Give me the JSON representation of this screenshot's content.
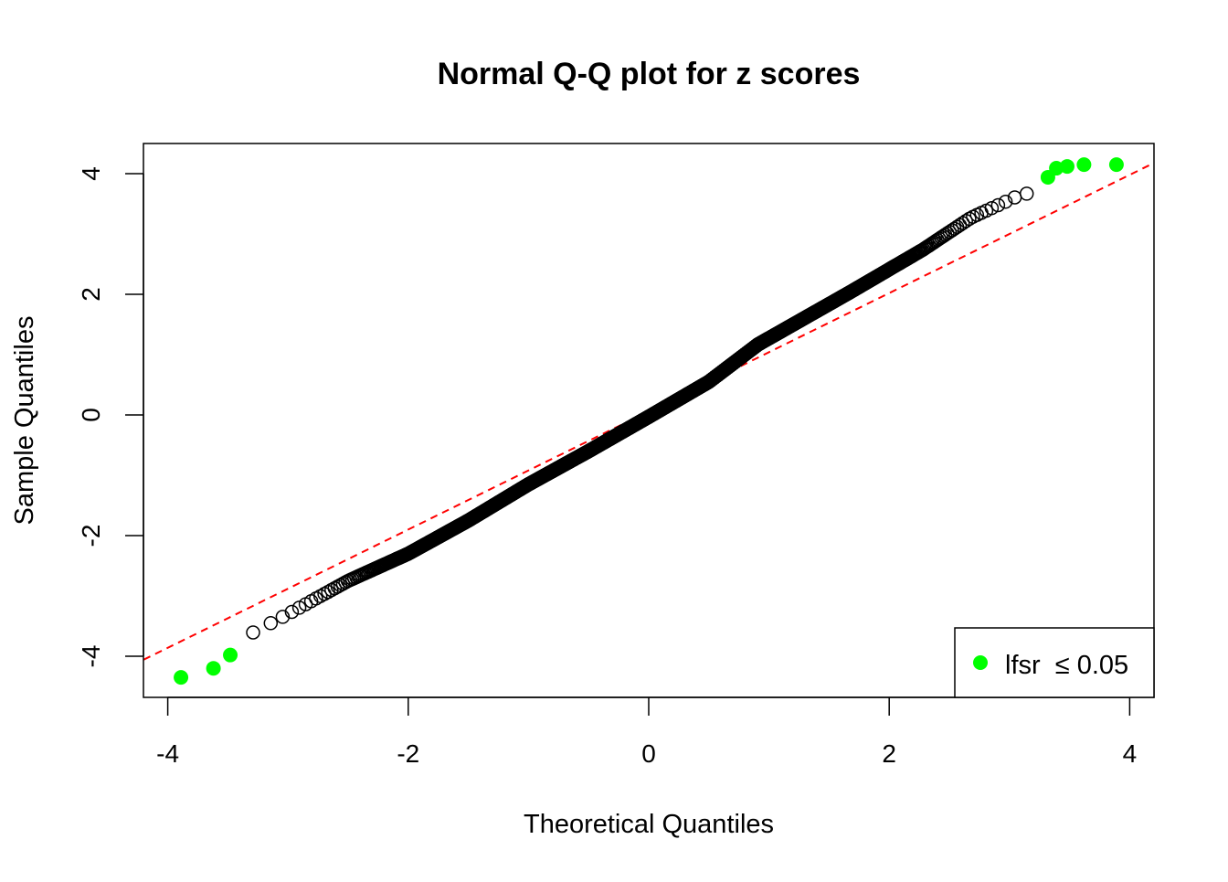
{
  "chart_data": {
    "type": "scatter",
    "title": "Normal Q-Q plot for z scores",
    "xlabel": "Theoretical Quantiles",
    "ylabel": "Sample Quantiles",
    "xlim": [
      -4.2,
      4.2
    ],
    "ylim": [
      -4.5,
      4.5
    ],
    "xticks": [
      -4,
      -2,
      0,
      2,
      4
    ],
    "yticks": [
      -4,
      -2,
      0,
      2,
      4
    ],
    "grid": false,
    "qq_points_curve": [
      [
        -3.39,
        -3.71
      ],
      [
        -3.0,
        -3.3
      ],
      [
        -2.5,
        -2.75
      ],
      [
        -2.0,
        -2.3
      ],
      [
        -1.5,
        -1.75
      ],
      [
        -1.0,
        -1.15
      ],
      [
        -0.5,
        -0.6
      ],
      [
        0.0,
        -0.03
      ],
      [
        0.5,
        0.55
      ],
      [
        0.91,
        1.17
      ],
      [
        1.67,
        2.03
      ],
      [
        2.28,
        2.74
      ],
      [
        2.68,
        3.27
      ],
      [
        3.06,
        3.62
      ],
      [
        3.27,
        3.74
      ]
    ],
    "highlighted_points": [
      [
        -3.89,
        -4.35
      ],
      [
        -3.62,
        -4.2
      ],
      [
        -3.48,
        -3.98
      ],
      [
        3.32,
        3.94
      ],
      [
        3.39,
        4.09
      ],
      [
        3.48,
        4.12
      ],
      [
        3.62,
        4.15
      ],
      [
        3.89,
        4.15
      ]
    ],
    "qq_line": {
      "intercept": 0.06,
      "slope": 0.98,
      "color": "#ff0000",
      "style": "dashed"
    },
    "point_color": "#000000",
    "highlight_color": "#00ff00",
    "legend": {
      "position": "bottom-right",
      "entries": [
        {
          "label": "lfsr  ≤ 0.05",
          "color": "#00ff00"
        }
      ]
    }
  }
}
